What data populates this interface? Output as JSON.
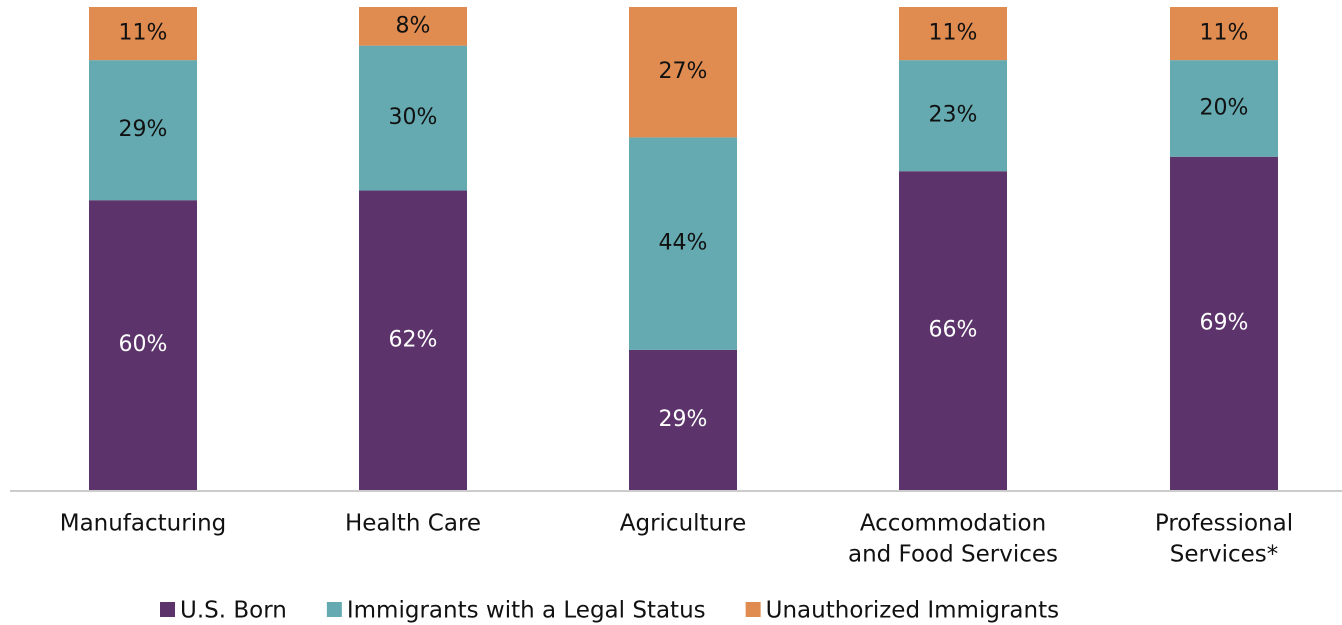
{
  "chart_data": {
    "type": "stacked_bar",
    "categories": [
      [
        "Manufacturing"
      ],
      [
        "Health Care"
      ],
      [
        "Agriculture"
      ],
      [
        "Accommodation",
        "and Food Services"
      ],
      [
        "Professional",
        "Services*"
      ]
    ],
    "ylim": [
      0,
      100
    ],
    "series": [
      {
        "name": "U.S. Born",
        "color": "#5c346b",
        "values": [
          60,
          62,
          29,
          66,
          69
        ],
        "value_labels": [
          "60%",
          "62%",
          "29%",
          "66%",
          "69%"
        ]
      },
      {
        "name": "Immigrants with a Legal Status",
        "color": "#64aab0",
        "values": [
          29,
          30,
          44,
          23,
          20
        ],
        "value_labels": [
          "29%",
          "30%",
          "44%",
          "23%",
          "20%"
        ]
      },
      {
        "name": "Unauthorized Immigrants",
        "color": "#e08c50",
        "values": [
          11,
          8,
          27,
          11,
          11
        ],
        "value_labels": [
          "11%",
          "8%",
          "27%",
          "11%",
          "11%"
        ]
      }
    ]
  }
}
